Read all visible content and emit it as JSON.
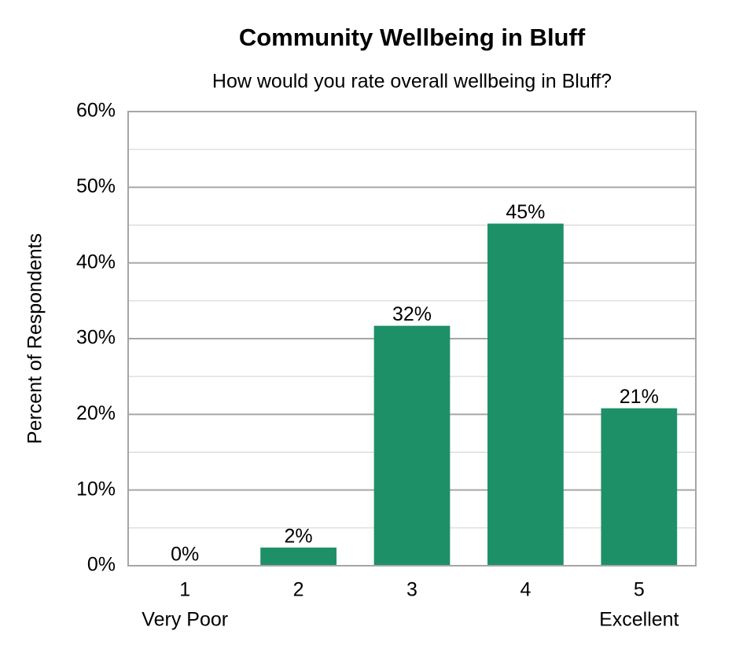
{
  "chart_data": {
    "type": "bar",
    "title": "Community Wellbeing in Bluff",
    "subtitle": "How would you rate overall wellbeing in Bluff?",
    "y_label": "Percent of Respondents",
    "categories": [
      [
        "1",
        "Very Poor"
      ],
      [
        "2"
      ],
      [
        "3"
      ],
      [
        "4"
      ],
      [
        "5",
        "Excellent"
      ]
    ],
    "values": [
      0,
      2.4,
      31.7,
      45.2,
      20.8
    ],
    "value_labels": [
      "0%",
      "2%",
      "32%",
      "45%",
      "21%"
    ],
    "color": "#1e9068",
    "ylim": [
      0,
      60
    ],
    "yticks": [
      {
        "value": 0,
        "label": "0%"
      },
      {
        "value": 10,
        "label": "10%"
      },
      {
        "value": 20,
        "label": "20%"
      },
      {
        "value": 30,
        "label": "30%"
      },
      {
        "value": 40,
        "label": "40%"
      },
      {
        "value": 50,
        "label": "50%"
      },
      {
        "value": 60,
        "label": "60%"
      }
    ],
    "minor_yticks": [
      5,
      15,
      25,
      35,
      45,
      55
    ],
    "grid": true
  }
}
